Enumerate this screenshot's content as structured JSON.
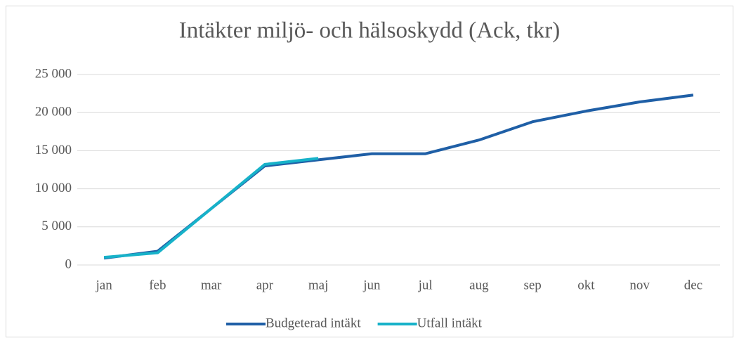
{
  "chart_data": {
    "type": "line",
    "title": "Intäkter miljö- och hälsoskydd (Ack, tkr)",
    "categories": [
      "jan",
      "feb",
      "mar",
      "apr",
      "maj",
      "jun",
      "jul",
      "aug",
      "sep",
      "okt",
      "nov",
      "dec"
    ],
    "series": [
      {
        "name": "Budgeterad intäkt",
        "color": "#1f5fa6",
        "values": [
          900,
          1800,
          7400,
          13000,
          13800,
          14600,
          14600,
          16400,
          18800,
          20200,
          21400,
          22300
        ]
      },
      {
        "name": "Utfall intäkt",
        "color": "#17b2c9",
        "values": [
          1000,
          1600,
          7400,
          13200,
          14000,
          null,
          null,
          null,
          null,
          null,
          null,
          null
        ]
      }
    ],
    "ylim": [
      0,
      25000
    ],
    "yticks": [
      0,
      {
        "value": 5000,
        "label": "5 000"
      },
      {
        "value": 10000,
        "label": "10 000"
      },
      {
        "value": 15000,
        "label": "15 000"
      },
      {
        "value": 20000,
        "label": "20 000"
      },
      {
        "value": 25000,
        "label": "25 000"
      }
    ],
    "grid": true,
    "legend": "bottom"
  }
}
